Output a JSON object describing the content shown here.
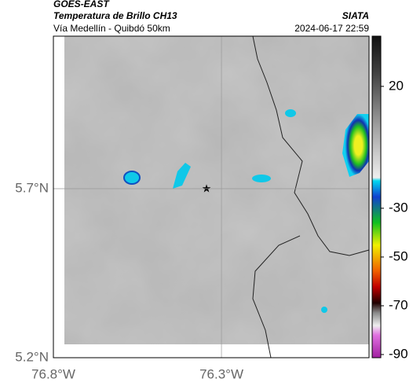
{
  "header": {
    "title": "GOES-EAST",
    "subtitle": "Temperatura de Brillo CH13",
    "route": "Vía Medellín - Quibdó 50km",
    "source": "SIATA",
    "timestamp": "2024-06-17 22:59"
  },
  "map": {
    "xlim": [
      -76.8,
      -75.861
    ],
    "ylim": [
      5.2,
      6.151
    ],
    "xticks": [
      {
        "value": -76.8,
        "label": "76.8°W"
      },
      {
        "value": -76.3,
        "label": "76.3°W"
      }
    ],
    "yticks": [
      {
        "value": 5.2,
        "label": "5.2°N"
      },
      {
        "value": 5.7,
        "label": "5.7°N"
      }
    ],
    "grid": true
  },
  "colorbar": {
    "clim": [
      -91.3,
      40.6
    ],
    "ticks": [
      20,
      -30,
      -50,
      -70,
      -90
    ]
  }
}
